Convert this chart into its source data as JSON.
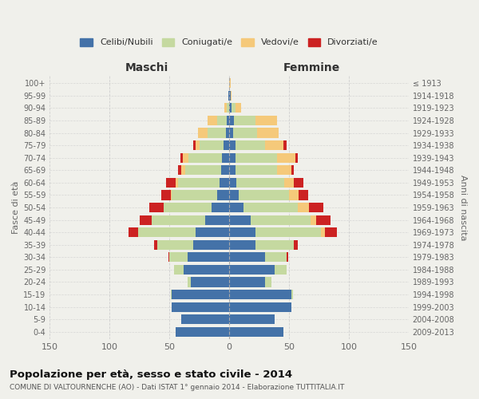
{
  "age_groups": [
    "0-4",
    "5-9",
    "10-14",
    "15-19",
    "20-24",
    "25-29",
    "30-34",
    "35-39",
    "40-44",
    "45-49",
    "50-54",
    "55-59",
    "60-64",
    "65-69",
    "70-74",
    "75-79",
    "80-84",
    "85-89",
    "90-94",
    "95-99",
    "100+"
  ],
  "birth_years": [
    "2009-2013",
    "2004-2008",
    "1999-2003",
    "1994-1998",
    "1989-1993",
    "1984-1988",
    "1979-1983",
    "1974-1978",
    "1969-1973",
    "1964-1968",
    "1959-1963",
    "1954-1958",
    "1949-1953",
    "1944-1948",
    "1939-1943",
    "1934-1938",
    "1929-1933",
    "1924-1928",
    "1919-1923",
    "1914-1918",
    "≤ 1913"
  ],
  "maschi_celibi": [
    45,
    40,
    48,
    48,
    32,
    38,
    35,
    30,
    28,
    20,
    15,
    10,
    8,
    7,
    6,
    5,
    3,
    2,
    0,
    1,
    0
  ],
  "maschi_coniugati": [
    0,
    0,
    0,
    1,
    3,
    8,
    15,
    30,
    48,
    45,
    40,
    38,
    35,
    30,
    28,
    20,
    15,
    8,
    2,
    0,
    0
  ],
  "maschi_vedovi": [
    0,
    0,
    0,
    0,
    0,
    0,
    0,
    0,
    0,
    0,
    0,
    1,
    2,
    3,
    5,
    3,
    8,
    8,
    2,
    0,
    0
  ],
  "maschi_divorziati": [
    0,
    0,
    0,
    0,
    0,
    0,
    1,
    3,
    8,
    10,
    12,
    8,
    8,
    3,
    2,
    2,
    0,
    0,
    0,
    0,
    0
  ],
  "femmine_celibi": [
    45,
    38,
    52,
    52,
    30,
    38,
    30,
    22,
    22,
    18,
    12,
    8,
    6,
    5,
    5,
    5,
    3,
    4,
    2,
    1,
    0
  ],
  "femmine_coniugati": [
    0,
    0,
    0,
    1,
    5,
    10,
    18,
    32,
    55,
    50,
    45,
    42,
    40,
    35,
    35,
    25,
    20,
    18,
    3,
    0,
    0
  ],
  "femmine_vedovi": [
    0,
    0,
    0,
    0,
    0,
    0,
    0,
    0,
    3,
    5,
    10,
    8,
    8,
    12,
    15,
    15,
    18,
    18,
    5,
    1,
    1
  ],
  "femmine_divorziati": [
    0,
    0,
    0,
    0,
    0,
    0,
    1,
    3,
    10,
    12,
    12,
    8,
    8,
    2,
    2,
    3,
    0,
    0,
    0,
    0,
    0
  ],
  "colors": {
    "celibi": "#4472a8",
    "coniugati": "#c5d9a0",
    "vedovi": "#f5c97a",
    "divorziati": "#cc2222"
  },
  "title": "Popolazione per età, sesso e stato civile - 2014",
  "subtitle": "COMUNE DI VALTOURNENCHE (AO) - Dati ISTAT 1° gennaio 2014 - Elaborazione TUTTITALIA.IT",
  "xlabel_left": "Maschi",
  "xlabel_right": "Femmine",
  "ylabel_left": "Fasce di età",
  "ylabel_right": "Anni di nascita",
  "xlim": 150,
  "background_color": "#f0f0eb",
  "legend_labels": [
    "Celibi/Nubili",
    "Coniugati/e",
    "Vedovi/e",
    "Divorziati/e"
  ]
}
